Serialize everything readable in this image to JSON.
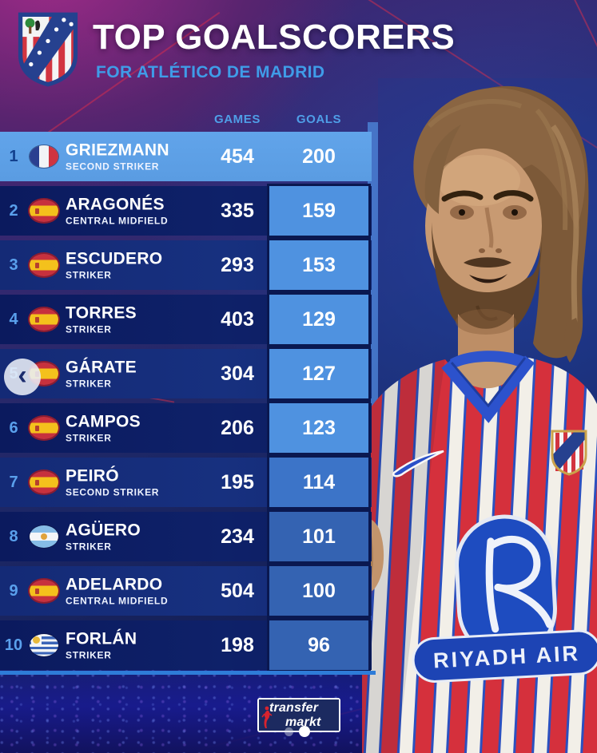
{
  "chart_data": {
    "type": "table",
    "title": "TOP GOALSCORERS",
    "subtitle": "FOR ATLÉTICO DE MADRID",
    "columns": [
      "GAMES",
      "GOALS"
    ],
    "rows": [
      {
        "rank": "1",
        "name": "GRIEZMANN",
        "position": "SECOND STRIKER",
        "nationality": "France",
        "games": "454",
        "goals": "200",
        "highlighted": true
      },
      {
        "rank": "2",
        "name": "ARAGONÉS",
        "position": "CENTRAL MIDFIELD",
        "nationality": "Spain",
        "games": "335",
        "goals": "159",
        "highlighted": false
      },
      {
        "rank": "3",
        "name": "ESCUDERO",
        "position": "STRIKER",
        "nationality": "Spain",
        "games": "293",
        "goals": "153",
        "highlighted": false
      },
      {
        "rank": "4",
        "name": "TORRES",
        "position": "STRIKER",
        "nationality": "Spain",
        "games": "403",
        "goals": "129",
        "highlighted": false
      },
      {
        "rank": "5",
        "name": "GÁRATE",
        "position": "STRIKER",
        "nationality": "Spain",
        "games": "304",
        "goals": "127",
        "highlighted": false
      },
      {
        "rank": "6",
        "name": "CAMPOS",
        "position": "STRIKER",
        "nationality": "Spain",
        "games": "206",
        "goals": "123",
        "highlighted": false
      },
      {
        "rank": "7",
        "name": "PEIRÓ",
        "position": "SECOND STRIKER",
        "nationality": "Spain",
        "games": "195",
        "goals": "114",
        "highlighted": false
      },
      {
        "rank": "8",
        "name": "AGÜERO",
        "position": "STRIKER",
        "nationality": "Argentina",
        "games": "234",
        "goals": "101",
        "highlighted": false
      },
      {
        "rank": "9",
        "name": "ADELARDO",
        "position": "CENTRAL MIDFIELD",
        "nationality": "Spain",
        "games": "504",
        "goals": "100",
        "highlighted": false
      },
      {
        "rank": "10",
        "name": "FORLÁN",
        "position": "STRIKER",
        "nationality": "Uruguay",
        "games": "198",
        "goals": "96",
        "highlighted": false
      }
    ]
  },
  "carousel": {
    "prev_label": "‹",
    "dots": [
      {
        "state": "inactive"
      },
      {
        "state": "active"
      }
    ]
  },
  "branding": {
    "logo_line1": "transfer",
    "logo_line2": "markt"
  },
  "player_image": {
    "sponsor_text": "RIYADH AIR",
    "alt": "Antoine Griezmann wearing the red-and-white striped Atlético de Madrid home shirt"
  },
  "colors": {
    "highlight_row": "#5fa2e8",
    "goals_cell": "#4f92e0",
    "row_dark": "#0c1d64",
    "row_medium": "#162e7c",
    "accent_blue": "#4f9fe8",
    "background_navy": "#131f5c",
    "background_magenta": "#7b2a6e",
    "stripe_red": "#d5303c"
  }
}
